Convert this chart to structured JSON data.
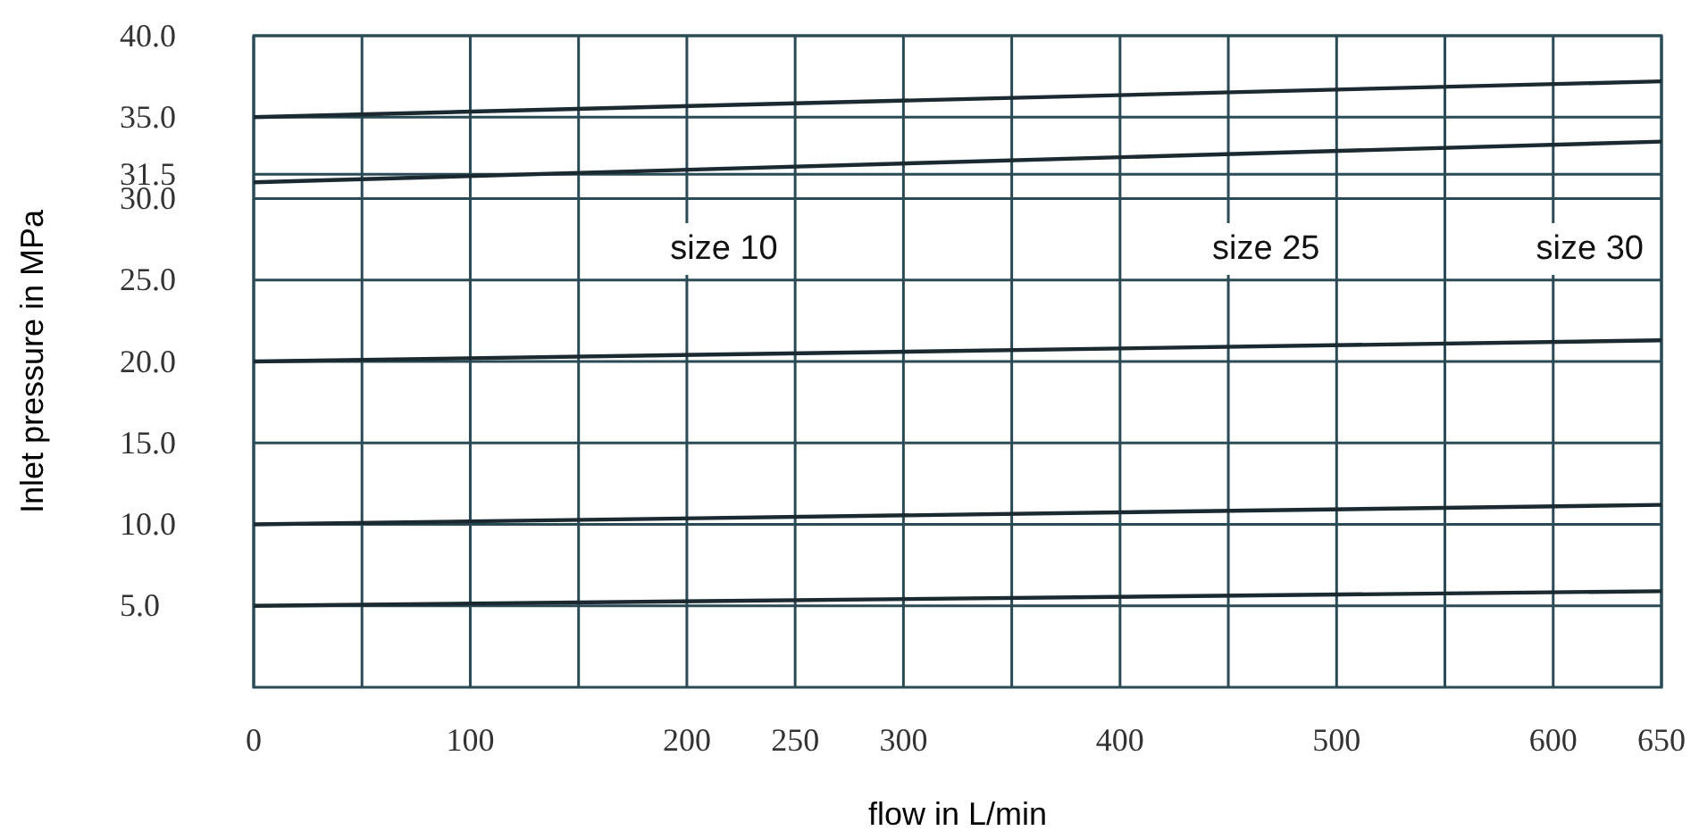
{
  "chart_data": {
    "type": "line",
    "xlabel": "flow in L/min",
    "ylabel": "Inlet pressure in MPa",
    "xlim": [
      0,
      650
    ],
    "xticks": [
      0,
      {
        "value": 50,
        "label": null
      },
      100,
      {
        "value": 150,
        "label": null
      },
      200,
      250,
      300,
      {
        "value": 350,
        "label": null
      },
      400,
      {
        "value": 450,
        "label": null
      },
      500,
      {
        "value": 550,
        "label": null
      },
      600,
      650
    ],
    "ylim": [
      0,
      40
    ],
    "yticks": [
      {
        "value": 5,
        "label": "5.0"
      },
      {
        "value": 10,
        "label": "10.0"
      },
      {
        "value": 15,
        "label": "15.0"
      },
      {
        "value": 20,
        "label": "20.0"
      },
      {
        "value": 25,
        "label": "25.0"
      },
      {
        "value": 30,
        "label": "30.0"
      },
      31.5,
      {
        "value": 35,
        "label": "35.0"
      },
      {
        "value": 40,
        "label": "40.0"
      }
    ],
    "grid": true,
    "line_style": "solid",
    "marker": "none",
    "x": [
      0,
      650
    ],
    "series": [
      {
        "color": "#1a2a30",
        "values": [
          35,
          37.2
        ]
      },
      {
        "color": "#1a2a30",
        "values": [
          31,
          33.5
        ]
      },
      {
        "color": "#1a2a30",
        "values": [
          20,
          21.3
        ]
      },
      {
        "color": "#1a2a30",
        "values": [
          10,
          11.2
        ]
      },
      {
        "color": "#1a2a30",
        "values": [
          5,
          5.9
        ]
      }
    ],
    "annotations": [
      "size 10",
      "size 25",
      "size 30"
    ]
  }
}
